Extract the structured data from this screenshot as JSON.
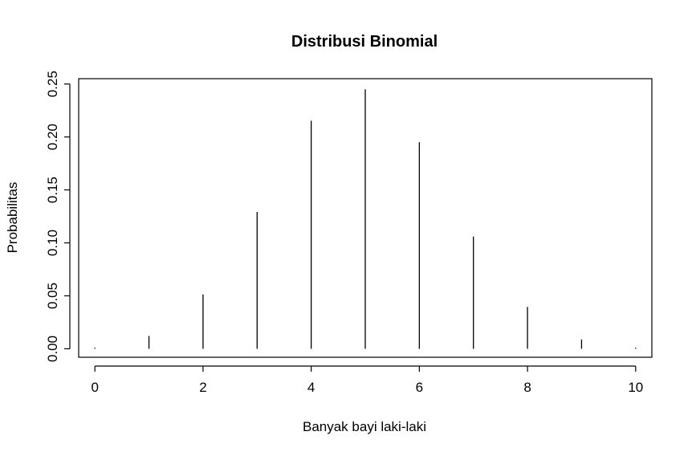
{
  "chart_data": {
    "type": "bar",
    "style": "vertical-lines",
    "title": "Distribusi Binomial",
    "xlabel": "Banyak bayi laki-laki",
    "ylabel": "Probabilitas",
    "x": [
      0,
      1,
      2,
      3,
      4,
      5,
      6,
      7,
      8,
      9,
      10
    ],
    "values": [
      0.001,
      0.0121,
      0.0513,
      0.1292,
      0.2153,
      0.245,
      0.195,
      0.106,
      0.0395,
      0.0088,
      0.001
    ],
    "xlim": [
      -0.3,
      10.3
    ],
    "ylim": [
      -0.008,
      0.255
    ],
    "x_ticks": [
      0,
      2,
      4,
      6,
      8,
      10
    ],
    "x_tick_labels": [
      "0",
      "2",
      "4",
      "6",
      "8",
      "10"
    ],
    "y_ticks": [
      0.0,
      0.05,
      0.1,
      0.15,
      0.2,
      0.25
    ],
    "y_tick_labels": [
      "0.00",
      "0.05",
      "0.10",
      "0.15",
      "0.20",
      "0.25"
    ],
    "grid": false,
    "legend": "none",
    "colors": {
      "line": "#000000",
      "background": "#ffffff"
    }
  }
}
